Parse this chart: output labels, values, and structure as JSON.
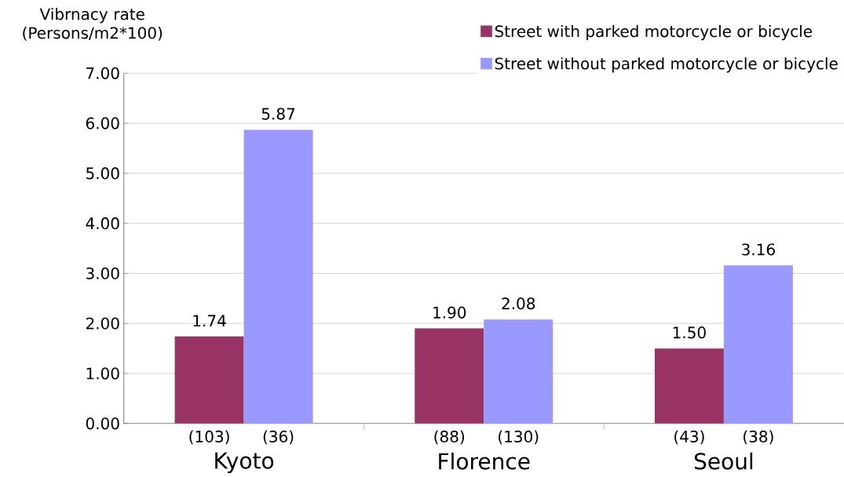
{
  "chart_data": {
    "type": "bar",
    "ylabel": "Vibrnacy rate (Persons/m2*100)",
    "categories": [
      "Kyoto",
      "Florence",
      "Seoul"
    ],
    "series": [
      {
        "name": "Street with parked motorcycle or bicycle",
        "color": "#993366",
        "values": [
          1.74,
          1.9,
          1.5
        ],
        "value_labels": [
          "1.74",
          "1.90",
          "1.50"
        ]
      },
      {
        "name": "Street without parked motorcycle or bicycle",
        "color": "#9999ff",
        "values": [
          5.87,
          2.08,
          3.16
        ],
        "value_labels": [
          "5.87",
          "2.08",
          "3.16"
        ]
      }
    ],
    "ylim": [
      0,
      7
    ],
    "yticks": [
      {
        "value": 0,
        "label": "0.00"
      },
      {
        "value": 1,
        "label": "1.00"
      },
      {
        "value": 2,
        "label": "2.00"
      },
      {
        "value": 3,
        "label": "3.00"
      },
      {
        "value": 4,
        "label": "4.00"
      },
      {
        "value": 5,
        "label": "5.00"
      },
      {
        "value": 6,
        "label": "6.00"
      },
      {
        "value": 7,
        "label": "7.00"
      }
    ],
    "grid": "y",
    "legend": "top right",
    "annotations": [
      "(103)",
      "(36)",
      "(88)",
      "(130)",
      "(43)",
      "(38)"
    ]
  }
}
